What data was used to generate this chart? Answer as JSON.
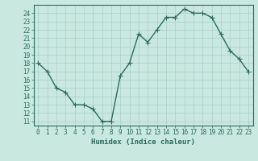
{
  "x": [
    0,
    1,
    2,
    3,
    4,
    5,
    6,
    7,
    8,
    9,
    10,
    11,
    12,
    13,
    14,
    15,
    16,
    17,
    18,
    19,
    20,
    21,
    22,
    23
  ],
  "y": [
    18,
    17,
    15,
    14.5,
    13,
    13,
    12.5,
    11,
    11,
    16.5,
    18,
    21.5,
    20.5,
    22,
    23.5,
    23.5,
    24.5,
    24,
    24,
    23.5,
    21.5,
    19.5,
    18.5,
    17
  ],
  "line_color": "#2e6b5e",
  "marker": "+",
  "marker_color": "#2e6b5e",
  "bg_color": "#c8e8e0",
  "grid_color": "#aacfc8",
  "xlabel": "Humidex (Indice chaleur)",
  "ylabel": "",
  "xlim": [
    -0.5,
    23.5
  ],
  "ylim": [
    10.5,
    25.0
  ],
  "yticks": [
    11,
    12,
    13,
    14,
    15,
    16,
    17,
    18,
    19,
    20,
    21,
    22,
    23,
    24
  ],
  "xticks": [
    0,
    1,
    2,
    3,
    4,
    5,
    6,
    7,
    8,
    9,
    10,
    11,
    12,
    13,
    14,
    15,
    16,
    17,
    18,
    19,
    20,
    21,
    22,
    23
  ],
  "tick_color": "#2e6b5e",
  "label_color": "#2e6b5e",
  "line_width": 1.0,
  "marker_size": 4,
  "font_size_ticks": 5.5,
  "font_size_label": 6.5
}
